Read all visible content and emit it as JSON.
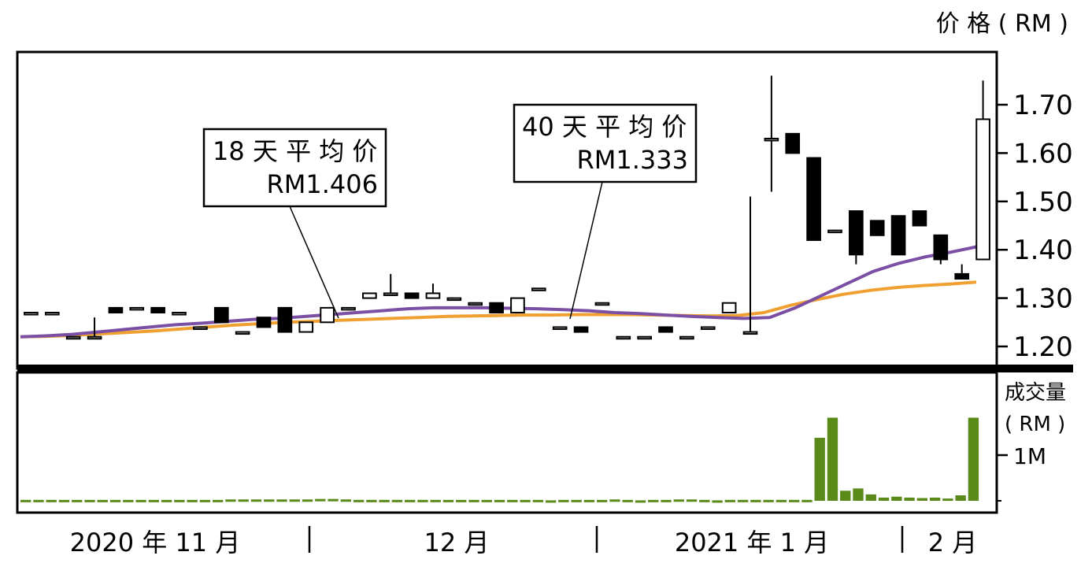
{
  "price_unit_label": "价 格 ( RM )",
  "volume_label_line1": "成交量",
  "volume_label_line2": "( RM )",
  "colors": {
    "ma18": "#7b4fa3",
    "ma40": "#f0a030",
    "volume": "#5a8a1a",
    "candle": "#000000",
    "frame": "#000000"
  },
  "chart_data": [
    {
      "type": "candlestick",
      "title": "",
      "ylabel": "价 格 ( RM )",
      "ylim": [
        1.18,
        1.82
      ],
      "yticks": [
        1.2,
        1.3,
        1.4,
        1.5,
        1.6,
        1.7
      ],
      "ytick_labels": [
        "1.20",
        "1.30",
        "1.40",
        "1.50",
        "1.60",
        "1.70"
      ],
      "x_period_labels": [
        "2020 年 11 月",
        "12 月",
        "2021 年 1 月",
        "2 月"
      ],
      "grid": false,
      "annotations": [
        {
          "line1": "18 天 平 均 价",
          "line2": "RM1.406"
        },
        {
          "line1": "40 天 平 均 价",
          "line2": "RM1.333"
        }
      ],
      "candles": [
        [
          1.27,
          1.27,
          1.27,
          1.27
        ],
        [
          1.27,
          1.27,
          1.27,
          1.27
        ],
        [
          1.22,
          1.22,
          1.22,
          1.22
        ],
        [
          1.22,
          1.26,
          1.22,
          1.22
        ],
        [
          1.28,
          1.28,
          1.27,
          1.27
        ],
        [
          1.28,
          1.28,
          1.28,
          1.28
        ],
        [
          1.28,
          1.28,
          1.27,
          1.27
        ],
        [
          1.27,
          1.27,
          1.27,
          1.27
        ],
        [
          1.24,
          1.24,
          1.24,
          1.24
        ],
        [
          1.28,
          1.28,
          1.25,
          1.25
        ],
        [
          1.23,
          1.23,
          1.23,
          1.23
        ],
        [
          1.26,
          1.26,
          1.24,
          1.24
        ],
        [
          1.28,
          1.28,
          1.23,
          1.23
        ],
        [
          1.23,
          1.25,
          1.23,
          1.25
        ],
        [
          1.25,
          1.28,
          1.25,
          1.28
        ],
        [
          1.28,
          1.28,
          1.28,
          1.28
        ],
        [
          1.3,
          1.31,
          1.3,
          1.31
        ],
        [
          1.31,
          1.35,
          1.31,
          1.31
        ],
        [
          1.31,
          1.31,
          1.3,
          1.3
        ],
        [
          1.3,
          1.33,
          1.3,
          1.31
        ],
        [
          1.3,
          1.3,
          1.3,
          1.3
        ],
        [
          1.29,
          1.29,
          1.29,
          1.29
        ],
        [
          1.29,
          1.29,
          1.27,
          1.27
        ],
        [
          1.27,
          1.3,
          1.27,
          1.3
        ],
        [
          1.32,
          1.32,
          1.32,
          1.32
        ],
        [
          1.24,
          1.24,
          1.24,
          1.24
        ],
        [
          1.24,
          1.24,
          1.23,
          1.23
        ],
        [
          1.29,
          1.29,
          1.29,
          1.29
        ],
        [
          1.22,
          1.22,
          1.22,
          1.22
        ],
        [
          1.22,
          1.22,
          1.22,
          1.22
        ],
        [
          1.24,
          1.24,
          1.23,
          1.23
        ],
        [
          1.22,
          1.22,
          1.22,
          1.22
        ],
        [
          1.24,
          1.24,
          1.24,
          1.24
        ],
        [
          1.27,
          1.29,
          1.27,
          1.29
        ],
        [
          1.23,
          1.51,
          1.23,
          1.23
        ],
        [
          1.63,
          1.76,
          1.52,
          1.63
        ],
        [
          1.64,
          1.64,
          1.6,
          1.6
        ],
        [
          1.59,
          1.59,
          1.42,
          1.42
        ],
        [
          1.44,
          1.44,
          1.44,
          1.44
        ],
        [
          1.48,
          1.48,
          1.37,
          1.39
        ],
        [
          1.46,
          1.46,
          1.43,
          1.43
        ],
        [
          1.47,
          1.47,
          1.39,
          1.39
        ],
        [
          1.48,
          1.48,
          1.45,
          1.45
        ],
        [
          1.43,
          1.43,
          1.37,
          1.38
        ],
        [
          1.35,
          1.37,
          1.34,
          1.34
        ],
        [
          1.38,
          1.75,
          1.38,
          1.67
        ]
      ],
      "ma18": [
        1.22,
        1.222,
        1.225,
        1.23,
        1.235,
        1.24,
        1.245,
        1.248,
        1.252,
        1.256,
        1.258,
        1.262,
        1.266,
        1.27,
        1.274,
        1.278,
        1.28,
        1.28,
        1.28,
        1.279,
        1.278,
        1.276,
        1.274,
        1.27,
        1.268,
        1.265,
        1.262,
        1.26,
        1.258,
        1.26,
        1.28,
        1.305,
        1.33,
        1.355,
        1.372,
        1.385,
        1.395,
        1.406
      ],
      "ma40": [
        1.22,
        1.221,
        1.223,
        1.226,
        1.229,
        1.232,
        1.236,
        1.24,
        1.244,
        1.247,
        1.25,
        1.252,
        1.254,
        1.256,
        1.258,
        1.26,
        1.262,
        1.263,
        1.264,
        1.265,
        1.265,
        1.266,
        1.266,
        1.266,
        1.265,
        1.264,
        1.263,
        1.264,
        1.27,
        1.285,
        1.297,
        1.308,
        1.316,
        1.322,
        1.326,
        1.329,
        1.333
      ],
      "volume_ytick_label": "1M",
      "volume": [
        0.02,
        0.02,
        0.02,
        0.02,
        0.02,
        0.02,
        0.02,
        0.02,
        0.02,
        0.02,
        0.02,
        0.02,
        0.02,
        0.02,
        0.02,
        0.02,
        0.03,
        0.03,
        0.03,
        0.03,
        0.03,
        0.03,
        0.03,
        0.04,
        0.04,
        0.03,
        0.02,
        0.02,
        0.02,
        0.02,
        0.02,
        0.02,
        0.02,
        0.02,
        0.02,
        0.02,
        0.02,
        0.02,
        0.02,
        0.02,
        0.02,
        0.01,
        0.02,
        0.02,
        0.02,
        0.02,
        0.03,
        0.02,
        0.01,
        0.02,
        0.02,
        0.03,
        0.03,
        0.02,
        0.01,
        0.02,
        0.02,
        0.02,
        0.02,
        0.02,
        0.02,
        0.02,
        1.38,
        1.82,
        0.22,
        0.27,
        0.14,
        0.07,
        0.09,
        0.07,
        0.06,
        0.07,
        0.05,
        0.12,
        1.82
      ],
      "volume_ylim": [
        0,
        2.2
      ]
    }
  ]
}
